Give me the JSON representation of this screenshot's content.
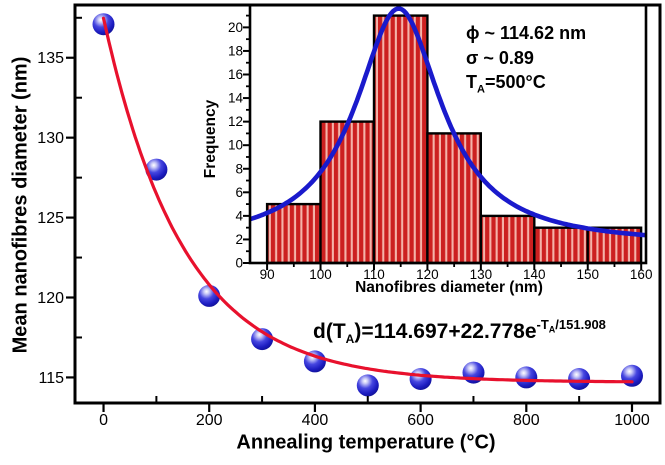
{
  "colors": {
    "background": "#ffffff",
    "axis": "#000000",
    "red_fit_line": "#e8112d",
    "bar_stripe_dark": "#cc2020",
    "bar_stripe_light": "#f4b3a9",
    "bar_edge": "#000000",
    "lorentzian_blue": "#1a1acc",
    "marker_blue": "#2121c8"
  },
  "chart_data": [
    {
      "id": "main-plot",
      "type": "scatter",
      "xlabel": "Annealing temperature (°C)",
      "ylabel": "Mean nanofibres diameter (nm)",
      "xlim": [
        -54,
        1053
      ],
      "ylim": [
        113.4,
        138.3
      ],
      "grid": false,
      "x_major_ticks": [
        0,
        200,
        400,
        600,
        800,
        1000
      ],
      "x_minor_ticks": [
        100,
        300,
        500,
        700,
        900
      ],
      "y_major_ticks": [
        115,
        120,
        125,
        130,
        135
      ],
      "y_minor_ticks": [
        117.5,
        122.5,
        127.5,
        132.5,
        137.5
      ],
      "series": [
        {
          "name": "mean-diameter-data",
          "type": "scatter",
          "marker": "blue-sphere",
          "x": [
            0,
            100,
            200,
            300,
            400,
            500,
            600,
            700,
            800,
            900,
            1000
          ],
          "y": [
            137.1,
            128.0,
            120.1,
            117.4,
            116.0,
            114.5,
            114.9,
            115.3,
            115.0,
            114.9,
            115.1
          ]
        },
        {
          "name": "exponential-decay-fit",
          "type": "line",
          "color": "#e8112d",
          "equation_text": "d(TA)=114.697+22.778e^(-TA/151.908)",
          "params": {
            "y0": 114.697,
            "amplitude": 22.778,
            "tau": 151.908
          },
          "x_range": [
            0,
            1000
          ]
        }
      ],
      "annotation_equation": {
        "lhs": "d(T",
        "lhs_sub": "A",
        "mid": ")=114.697+22.778e",
        "exp_prefix": "-T",
        "exp_sub": "A",
        "exp_suffix": "/151.908"
      }
    },
    {
      "id": "inset-histogram",
      "type": "bar",
      "xlabel": "Nanofibres diameter (nm)",
      "ylabel": "Frequency",
      "xlim": [
        86.8,
        160.9
      ],
      "ylim": [
        0,
        21.9
      ],
      "grid": false,
      "x_major_ticks": [
        90,
        100,
        110,
        120,
        130,
        140,
        150,
        160
      ],
      "x_minor_ticks": [
        95,
        105,
        115,
        125,
        135,
        145,
        155
      ],
      "y_major_ticks": [
        0,
        2,
        4,
        6,
        8,
        10,
        12,
        14,
        16,
        18,
        20
      ],
      "y_minor_ticks": [
        1,
        3,
        5,
        7,
        9,
        11,
        13,
        15,
        17,
        19,
        21
      ],
      "bin_start": 90,
      "bin_width": 10,
      "categories": [
        "90-100",
        "100-110",
        "110-120",
        "120-130",
        "130-140",
        "140-150",
        "150-160"
      ],
      "frequencies": [
        5,
        12,
        21,
        11,
        4,
        3,
        3
      ],
      "fit_curve": {
        "type": "lorentzian",
        "center": 114.62,
        "peak_height": 20.1,
        "half_width": 9.8,
        "baseline": 1.5
      },
      "stats": {
        "phi_symbol": "ϕ",
        "phi_value": " ~ 114.62 nm",
        "sigma_symbol": "σ",
        "sigma_value": " ~ 0.89",
        "ta_base": "T",
        "ta_sub": "A",
        "ta_value": "=500°C"
      }
    }
  ]
}
